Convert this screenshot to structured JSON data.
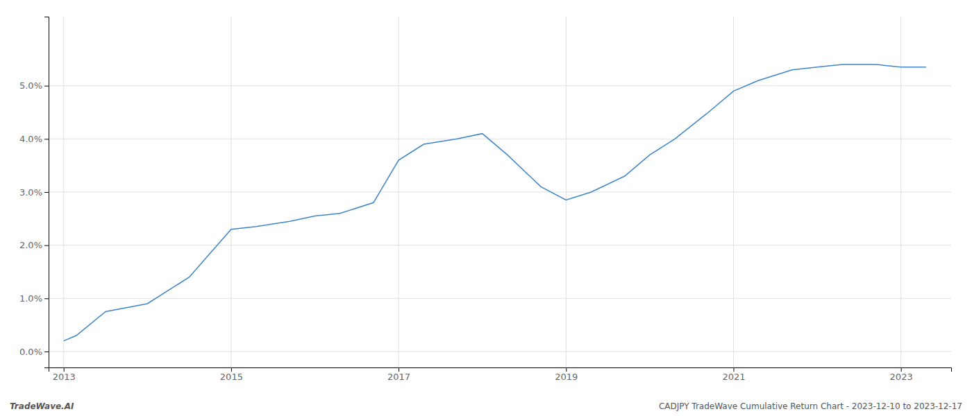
{
  "chart_data": {
    "type": "line",
    "x": [
      2013.0,
      2013.15,
      2013.5,
      2014.0,
      2014.5,
      2015.0,
      2015.3,
      2015.7,
      2016.0,
      2016.3,
      2016.7,
      2017.0,
      2017.3,
      2017.7,
      2018.0,
      2018.3,
      2018.7,
      2019.0,
      2019.3,
      2019.7,
      2020.0,
      2020.3,
      2020.7,
      2021.0,
      2021.3,
      2021.7,
      2022.0,
      2022.3,
      2022.7,
      2023.0,
      2023.3
    ],
    "values": [
      0.002,
      0.003,
      0.0075,
      0.009,
      0.014,
      0.023,
      0.0235,
      0.0245,
      0.0255,
      0.026,
      0.028,
      0.036,
      0.039,
      0.04,
      0.041,
      0.037,
      0.031,
      0.0285,
      0.03,
      0.033,
      0.037,
      0.04,
      0.045,
      0.049,
      0.051,
      0.053,
      0.0535,
      0.054,
      0.054,
      0.0535,
      0.0535
    ],
    "color": "#3d85c8",
    "xlim": [
      2012.82,
      2023.6
    ],
    "xticks": [
      2013,
      2015,
      2017,
      2019,
      2021,
      2023
    ],
    "ylim": [
      -0.003,
      0.063
    ],
    "yticks": [
      {
        "value": 0.0,
        "label": "0.0%"
      },
      {
        "value": 0.01,
        "label": "1.0%"
      },
      {
        "value": 0.02,
        "label": "2.0%"
      },
      {
        "value": 0.03,
        "label": "3.0%"
      },
      {
        "value": 0.04,
        "label": "4.0%"
      },
      {
        "value": 0.05,
        "label": "5.0%"
      }
    ],
    "grid": true,
    "annotations": [
      "TradeWave.AI",
      "CADJPY TradeWave Cumulative Return Chart - 2023-12-10 to 2023-12-17"
    ]
  }
}
